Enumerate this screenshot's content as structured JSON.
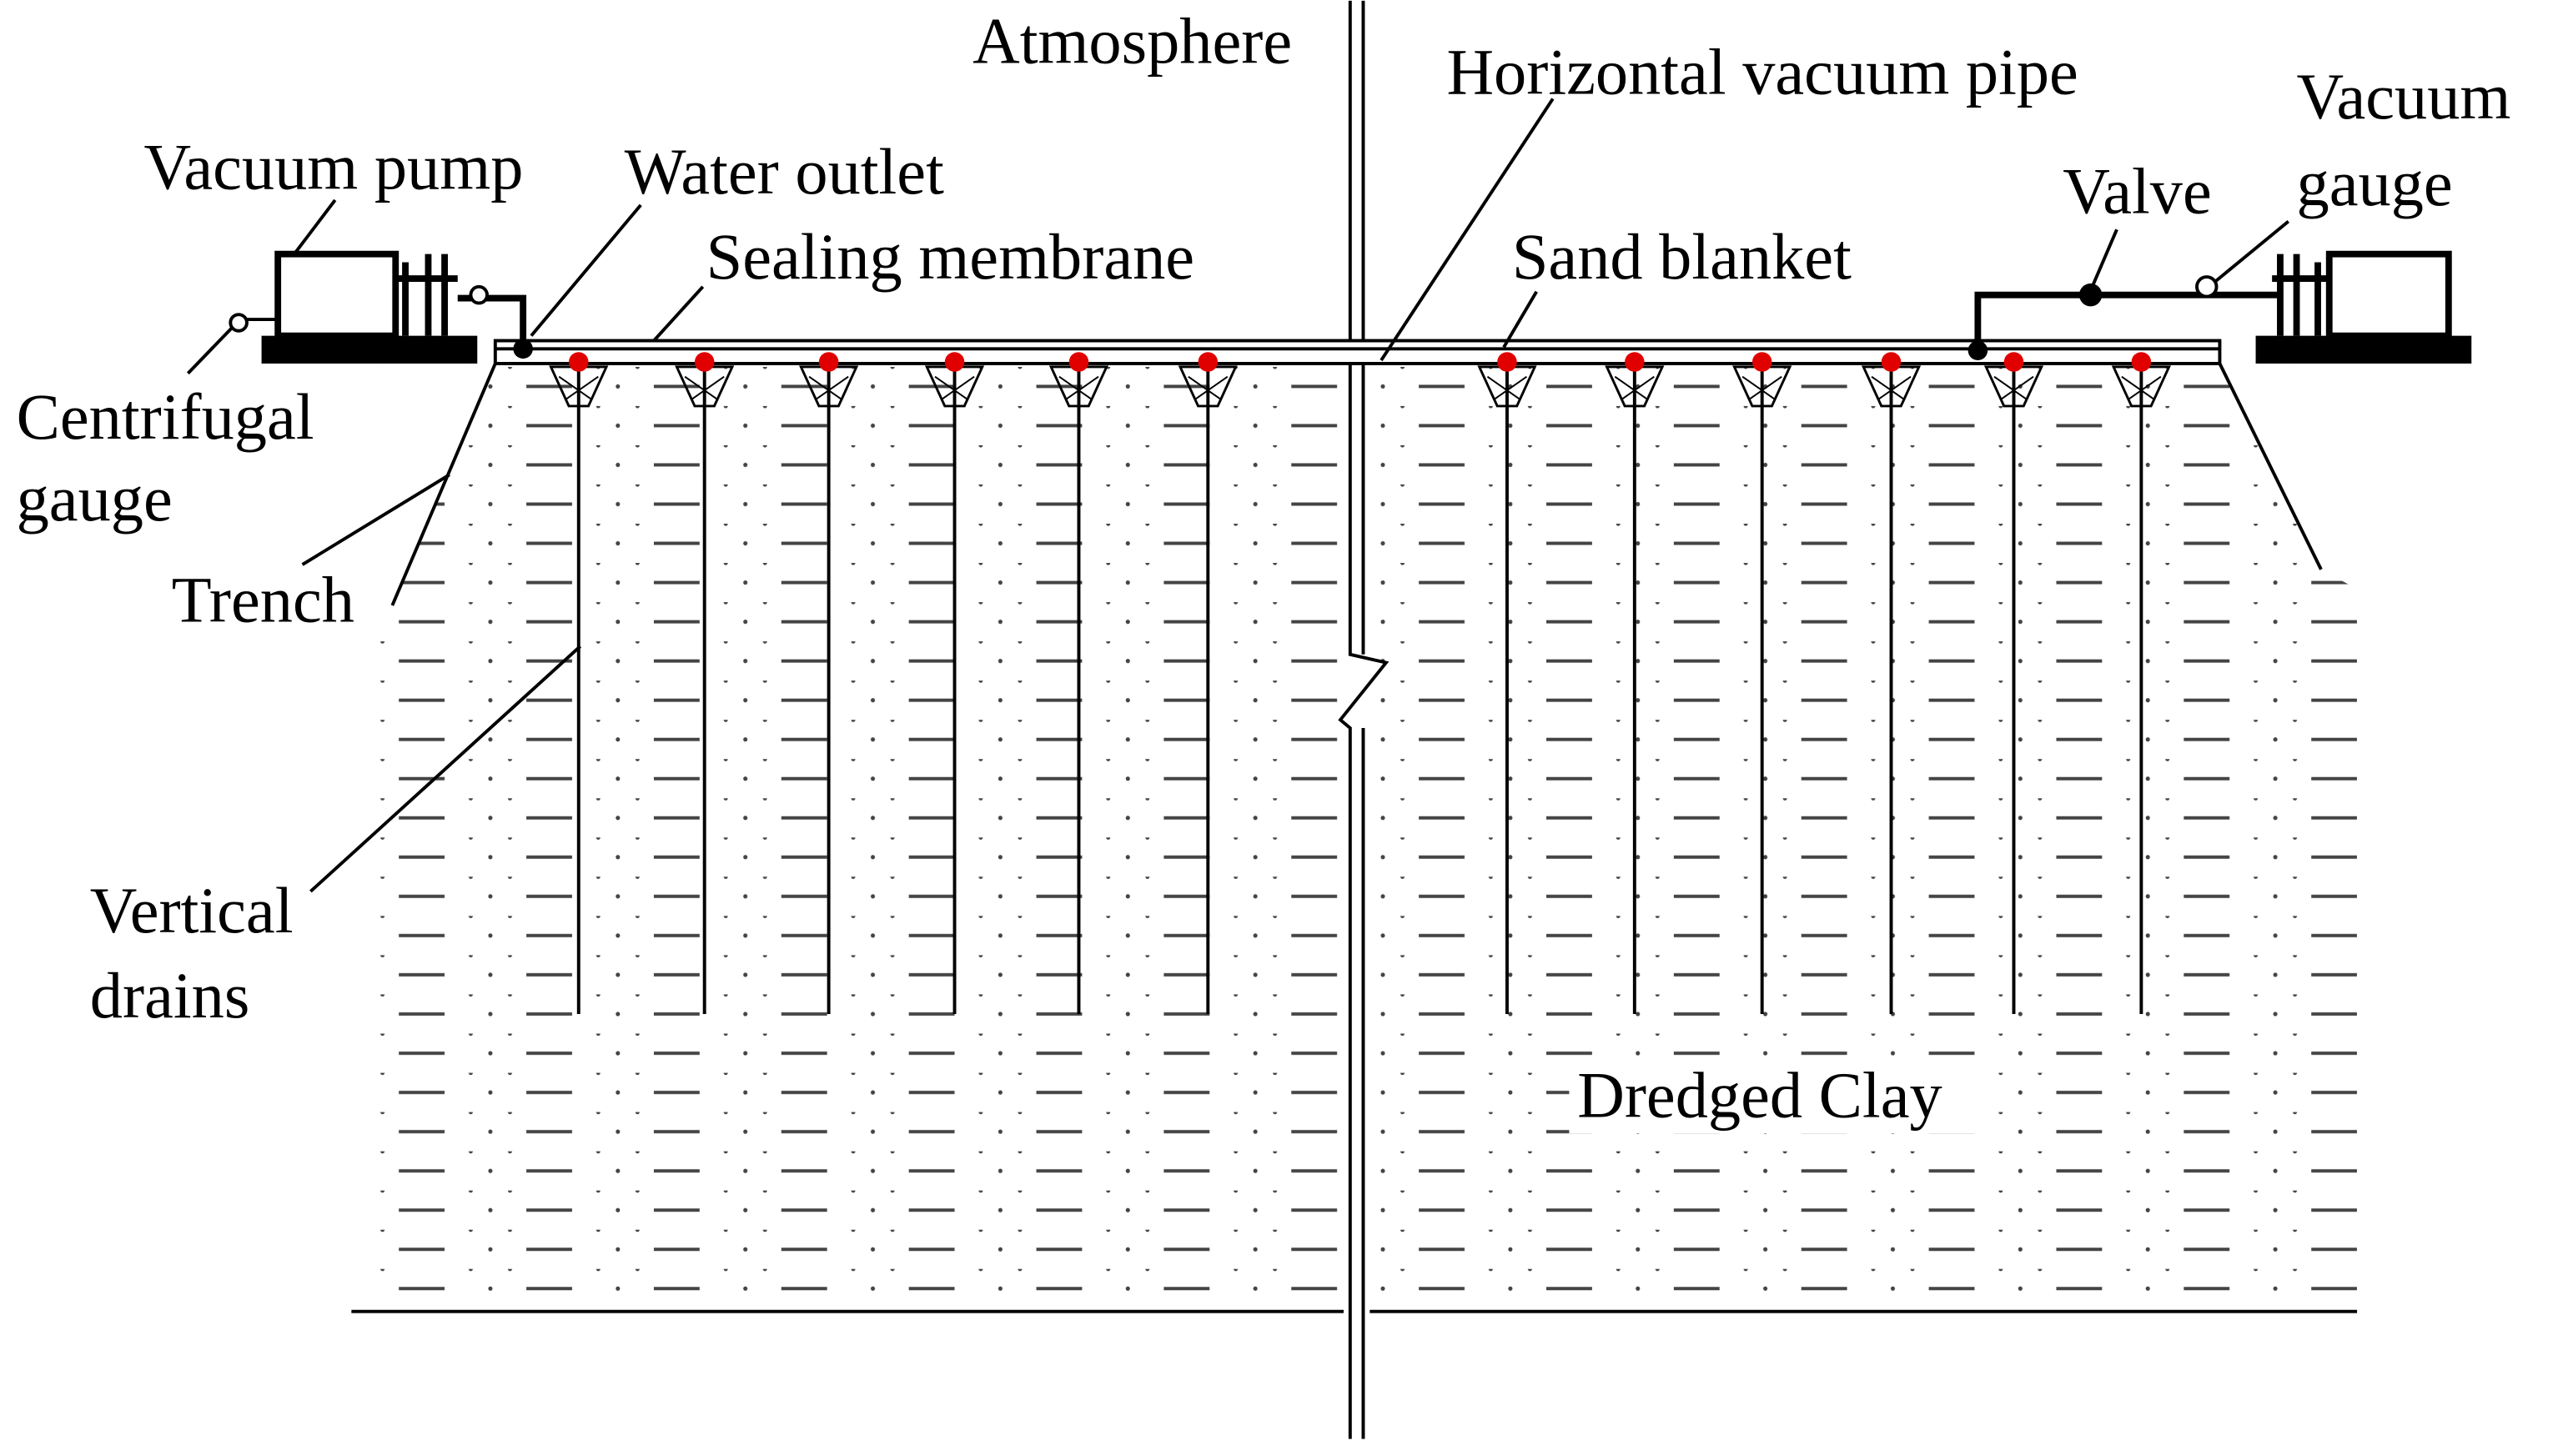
{
  "labels": {
    "atmosphere": "Atmosphere",
    "horizontal_vacuum_pipe": "Horizontal vacuum pipe",
    "vacuum_gauge": [
      "Vacuum",
      "gauge"
    ],
    "vacuum_pump": "Vacuum pump",
    "water_outlet": "Water outlet",
    "valve": "Valve",
    "sealing_membrane": "Sealing membrane",
    "sand_blanket": "Sand blanket",
    "centrifugal_gauge": [
      "Centrifugal",
      "gauge"
    ],
    "trench": "Trench",
    "vertical_drains": [
      "Vertical",
      "drains"
    ],
    "dredged_clay": "Dredged Clay"
  }
}
